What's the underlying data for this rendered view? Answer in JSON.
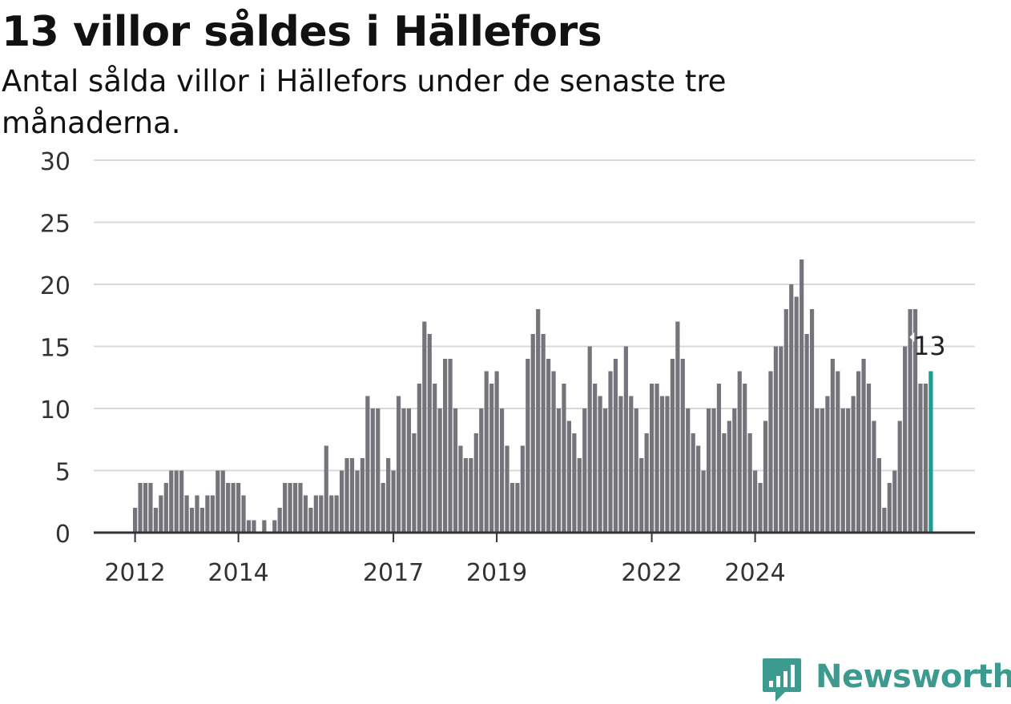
{
  "header": {
    "title": "13 villor såldes i Hällefors",
    "subtitle": "Antal sålda villor i Hällefors under de senaste tre månaderna."
  },
  "brand": {
    "name": "Newsworthy",
    "color": "#3d9a8f"
  },
  "chart_data": {
    "type": "bar",
    "title": "13 villor såldes i Hällefors",
    "subtitle": "Antal sålda villor i Hällefors under de senaste tre månaderna.",
    "ylim": [
      0,
      30
    ],
    "yticks": [
      0,
      5,
      10,
      15,
      20,
      25,
      30
    ],
    "xtick_labels": [
      {
        "label": "2012",
        "index": 0
      },
      {
        "label": "2014",
        "index": 20
      },
      {
        "label": "2017",
        "index": 50
      },
      {
        "label": "2019",
        "index": 70
      },
      {
        "label": "2022",
        "index": 100
      },
      {
        "label": "2024",
        "index": 120
      }
    ],
    "grid": true,
    "bar_color": "#75747a",
    "highlight_color": "#1a9e94",
    "highlight_label": "13",
    "values": [
      2,
      4,
      4,
      4,
      2,
      3,
      4,
      5,
      5,
      5,
      3,
      2,
      3,
      2,
      3,
      3,
      5,
      5,
      4,
      4,
      4,
      3,
      1,
      1,
      0,
      1,
      0,
      1,
      2,
      4,
      4,
      4,
      4,
      3,
      2,
      3,
      3,
      7,
      3,
      3,
      5,
      6,
      6,
      5,
      6,
      11,
      10,
      10,
      4,
      6,
      5,
      11,
      10,
      10,
      8,
      12,
      17,
      16,
      12,
      10,
      14,
      14,
      10,
      7,
      6,
      6,
      8,
      10,
      13,
      12,
      13,
      10,
      7,
      4,
      4,
      7,
      14,
      16,
      18,
      16,
      14,
      13,
      10,
      12,
      9,
      8,
      6,
      10,
      15,
      12,
      11,
      10,
      13,
      14,
      11,
      15,
      11,
      10,
      6,
      8,
      12,
      12,
      11,
      11,
      14,
      17,
      14,
      10,
      8,
      7,
      5,
      10,
      10,
      12,
      8,
      9,
      10,
      13,
      12,
      8,
      5,
      4,
      9,
      13,
      15,
      15,
      18,
      20,
      19,
      22,
      16,
      18,
      10,
      10,
      11,
      14,
      13,
      10,
      10,
      11,
      13,
      14,
      12,
      9,
      6,
      2,
      4,
      5,
      9,
      15,
      18,
      18,
      12,
      12,
      13
    ]
  }
}
